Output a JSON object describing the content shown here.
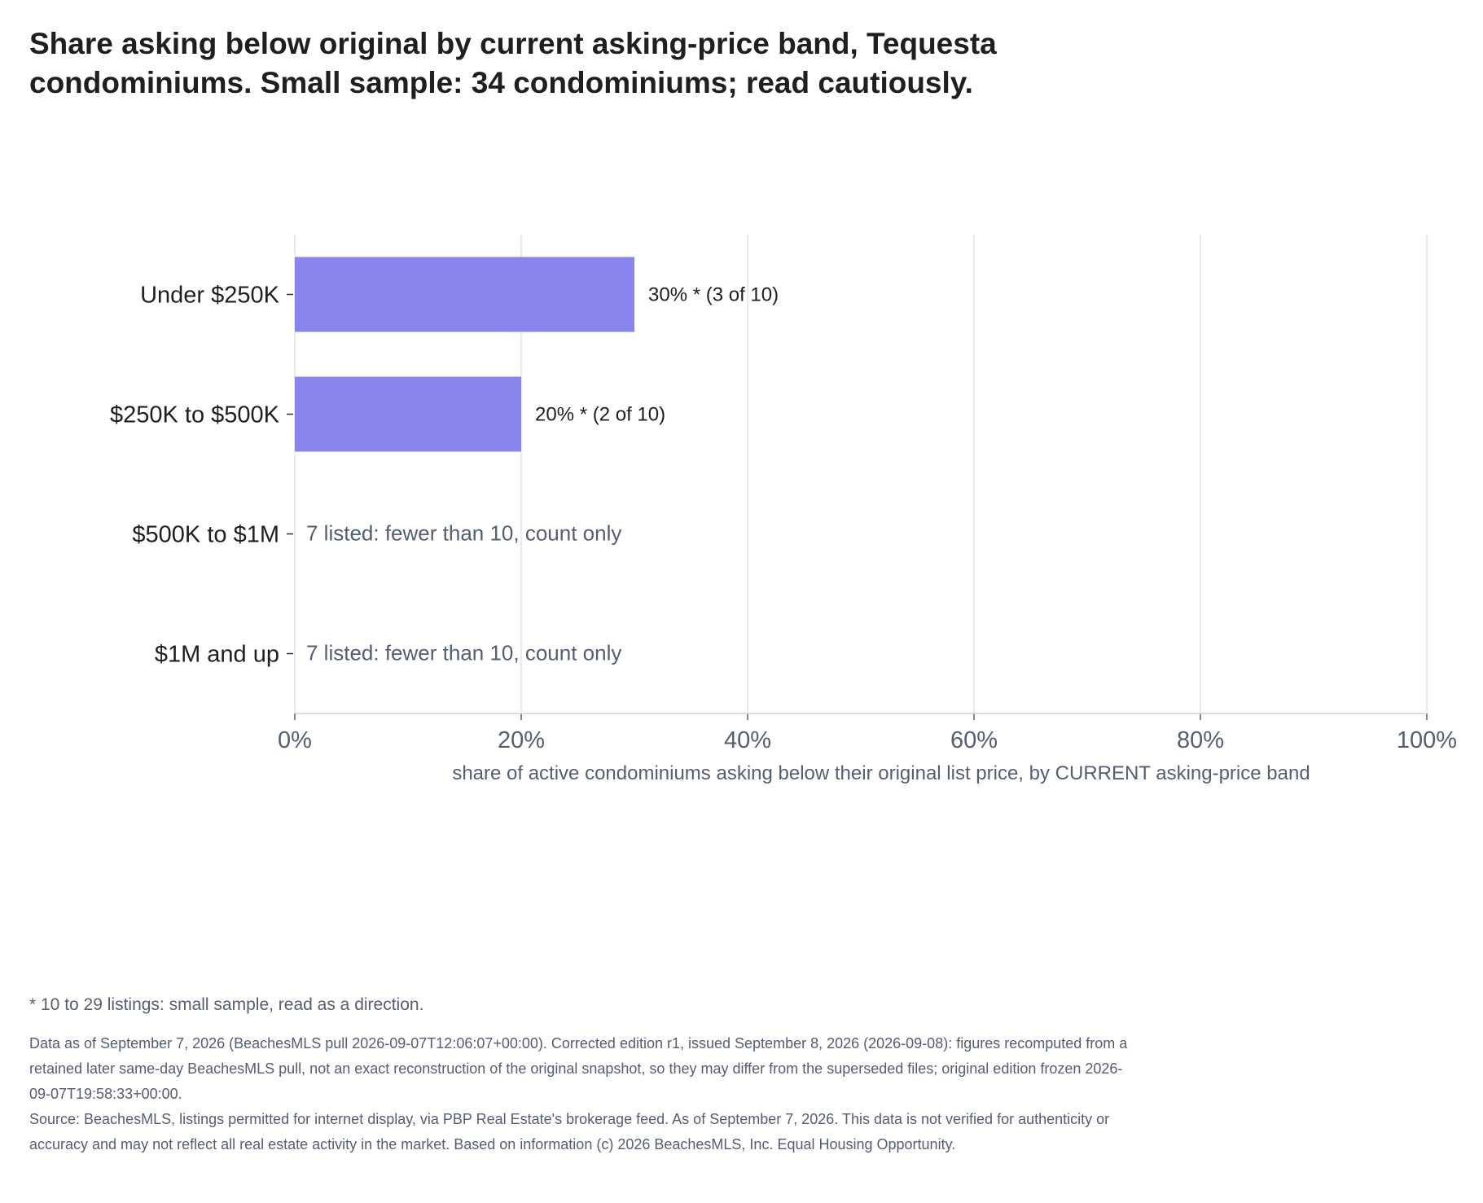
{
  "title": "Share asking below original by current asking-price band, Tequesta condominiums. Small sample: 34 condominiums; read cautiously.",
  "chart_data": {
    "type": "bar",
    "orientation": "horizontal",
    "categories": [
      "Under $250K",
      "$250K to $500K",
      "$500K to $1M",
      "$1M and up"
    ],
    "values": [
      30,
      20,
      null,
      null
    ],
    "bar_labels": [
      "30% *  (3 of 10)",
      "20% *  (2 of 10)",
      "7 listed: fewer than 10, count only",
      "7 listed: fewer than 10, count only"
    ],
    "xlabel": "share of active condominiums asking below their original list price, by CURRENT asking-price band",
    "ylabel": "",
    "xlim": [
      0,
      100
    ],
    "xticks": [
      "0%",
      "20%",
      "40%",
      "60%",
      "80%",
      "100%"
    ],
    "grid": true,
    "colors": {
      "bar": "#8884ee",
      "count_text": "#555e70",
      "grid": "#e4e4ea"
    }
  },
  "footnote": "* 10 to 29 listings: small sample, read as a direction.",
  "notes": {
    "edition": "Data as of September 7, 2026 (BeachesMLS pull 2026-09-07T12:06:07+00:00). Corrected edition r1, issued September 8, 2026 (2026-09-08): figures recomputed from a retained later same-day BeachesMLS pull, not an exact reconstruction of the original snapshot, so they may differ from the superseded files; original edition frozen 2026-09-07T19:58:33+00:00.",
    "source": "Source: BeachesMLS, listings permitted for internet display, via PBP Real Estate's brokerage feed. As of September 7, 2026. This data is not verified for authenticity or accuracy and may not reflect all real estate activity in the market. Based on information (c) 2026 BeachesMLS, Inc. Equal Housing Opportunity."
  }
}
